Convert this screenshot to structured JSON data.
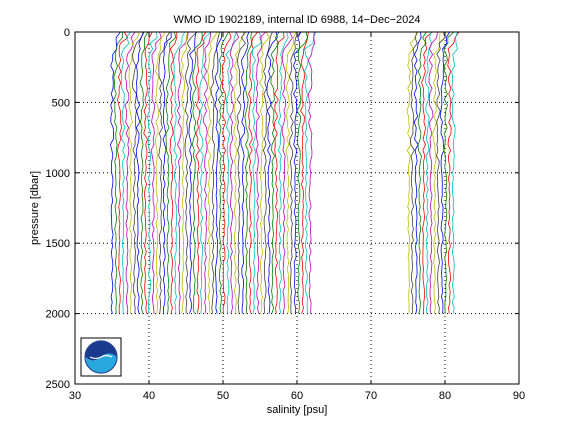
{
  "chart_data": {
    "type": "line",
    "title": "WMO ID 1902189, internal ID 6988, 14−Dec−2024",
    "xlabel": "salinity [psu]",
    "ylabel": "pressure [dbar]",
    "xlim": [
      30,
      90
    ],
    "ylim": [
      0,
      2500
    ],
    "y_reversed": true,
    "x_ticks": [
      "30",
      "40",
      "50",
      "60",
      "70",
      "80",
      "90"
    ],
    "y_ticks": [
      "0",
      "500",
      "1000",
      "1500",
      "2000",
      "2500"
    ],
    "x_tick_values": [
      30,
      40,
      50,
      60,
      70,
      80,
      90
    ],
    "y_tick_values": [
      0,
      500,
      1000,
      1500,
      2000,
      2500
    ],
    "grid": "dotted",
    "series_colors": [
      "#0000ff",
      "#008000",
      "#ff0000",
      "#00bfbf",
      "#bf00bf",
      "#bfbf00",
      "#404040"
    ],
    "profile_groups": [
      {
        "x_start": 35.0,
        "x_step": 0.505,
        "count": 54,
        "surface_offset": 1.0,
        "max_pressure": 2000
      },
      {
        "x_start": 75.1,
        "x_step": 0.5,
        "count": 13,
        "surface_offset": 0.9,
        "max_pressure": 2000
      }
    ],
    "logo": {
      "text": "NOAA",
      "colors": [
        "#1a3a8f",
        "#29a8e0",
        "#ffffff"
      ]
    }
  }
}
